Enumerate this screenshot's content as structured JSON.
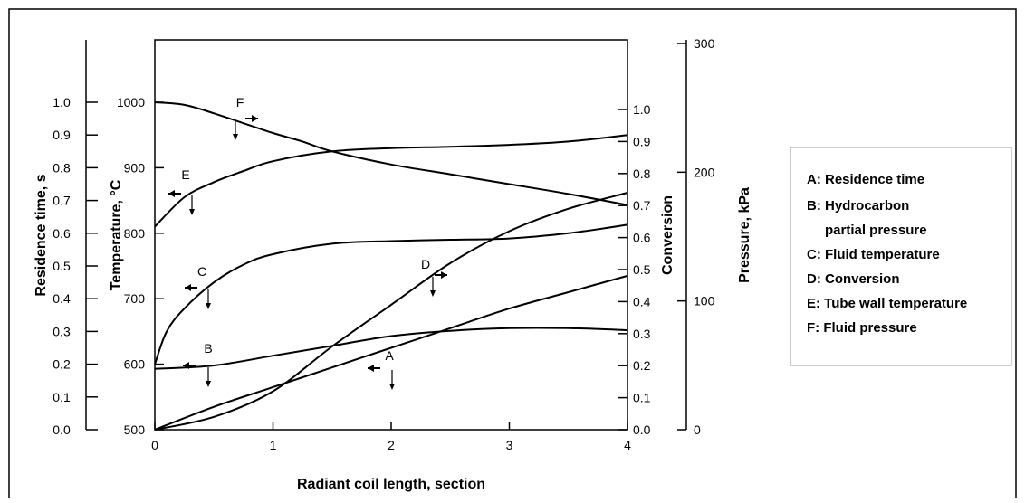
{
  "chart_data": {
    "type": "line",
    "title": "",
    "xlabel": "Radiant coil length, section",
    "x_ticks": [
      "0",
      "1",
      "2",
      "3",
      "4"
    ],
    "xlim": [
      0,
      4
    ],
    "grid": false,
    "legend_placement": "right",
    "legend_entries": [
      "A: Residence time",
      "B: Hydrocarbon",
      "partial pressure",
      "C: Fluid temperature",
      "D: Conversion",
      "E: Tube wall temperature",
      "F: Fluid pressure"
    ],
    "axes": {
      "residence_time": {
        "label": "Residence time, s",
        "range": [
          0.0,
          1.0
        ],
        "ticks": [
          "0.0",
          "0.1",
          "0.2",
          "0.3",
          "0.4",
          "0.5",
          "0.6",
          "0.7",
          "0.8",
          "0.9",
          "1.0"
        ]
      },
      "temperature": {
        "label": "Temperature, °C",
        "range": [
          500,
          1000
        ],
        "ticks": [
          "500",
          "600",
          "700",
          "800",
          "900",
          "1000"
        ]
      },
      "conversion": {
        "label": "Conversion",
        "range": [
          0.0,
          1.0
        ],
        "ticks": [
          "0.0",
          "0.1",
          "0.2",
          "0.3",
          "0.4",
          "0.5",
          "0.6",
          "0.7",
          "0.8",
          "0.9",
          "1.0"
        ]
      },
      "pressure": {
        "label": "Pressure, kPa",
        "range": [
          0,
          300
        ],
        "ticks": [
          "0",
          "100",
          "200",
          "300"
        ]
      }
    },
    "series": [
      {
        "id": "A",
        "curve_label": "A",
        "axis": "residence_time",
        "x": [
          0,
          0.5,
          1,
          1.5,
          2,
          2.5,
          3,
          3.5,
          4
        ],
        "y": [
          0.0,
          0.07,
          0.13,
          0.19,
          0.25,
          0.31,
          0.37,
          0.42,
          0.47
        ]
      },
      {
        "id": "B",
        "curve_label": "B",
        "axis": "temperature",
        "x": [
          0,
          0.5,
          1,
          1.5,
          2,
          2.5,
          3,
          3.5,
          4
        ],
        "y": [
          593,
          598,
          613,
          628,
          643,
          651,
          655,
          655,
          652
        ]
      },
      {
        "id": "C",
        "curve_label": "C",
        "axis": "temperature",
        "x": [
          0,
          0.1,
          0.25,
          0.5,
          0.75,
          1,
          1.5,
          2,
          2.5,
          3,
          3.5,
          4
        ],
        "y": [
          600,
          650,
          685,
          725,
          752,
          768,
          784,
          788,
          790,
          792,
          800,
          813
        ]
      },
      {
        "id": "D",
        "curve_label": "D",
        "axis": "conversion",
        "x": [
          0,
          0.5,
          1,
          1.5,
          2,
          2.5,
          3,
          3.5,
          4
        ],
        "y": [
          0.0,
          0.04,
          0.12,
          0.26,
          0.39,
          0.52,
          0.62,
          0.69,
          0.74
        ]
      },
      {
        "id": "E",
        "curve_label": "E",
        "axis": "temperature",
        "x": [
          0,
          0.25,
          0.5,
          0.75,
          1,
          1.5,
          2,
          2.5,
          3,
          3.5,
          4
        ],
        "y": [
          810,
          855,
          878,
          895,
          910,
          925,
          930,
          932,
          935,
          940,
          950
        ]
      },
      {
        "id": "F",
        "curve_label": "F",
        "axis": "temperature",
        "x": [
          0,
          0.25,
          0.5,
          0.75,
          1,
          1.25,
          1.5,
          2,
          2.5,
          3,
          3.5,
          4
        ],
        "y": [
          1000,
          996,
          983,
          968,
          953,
          940,
          925,
          905,
          890,
          875,
          860,
          843
        ]
      }
    ]
  }
}
